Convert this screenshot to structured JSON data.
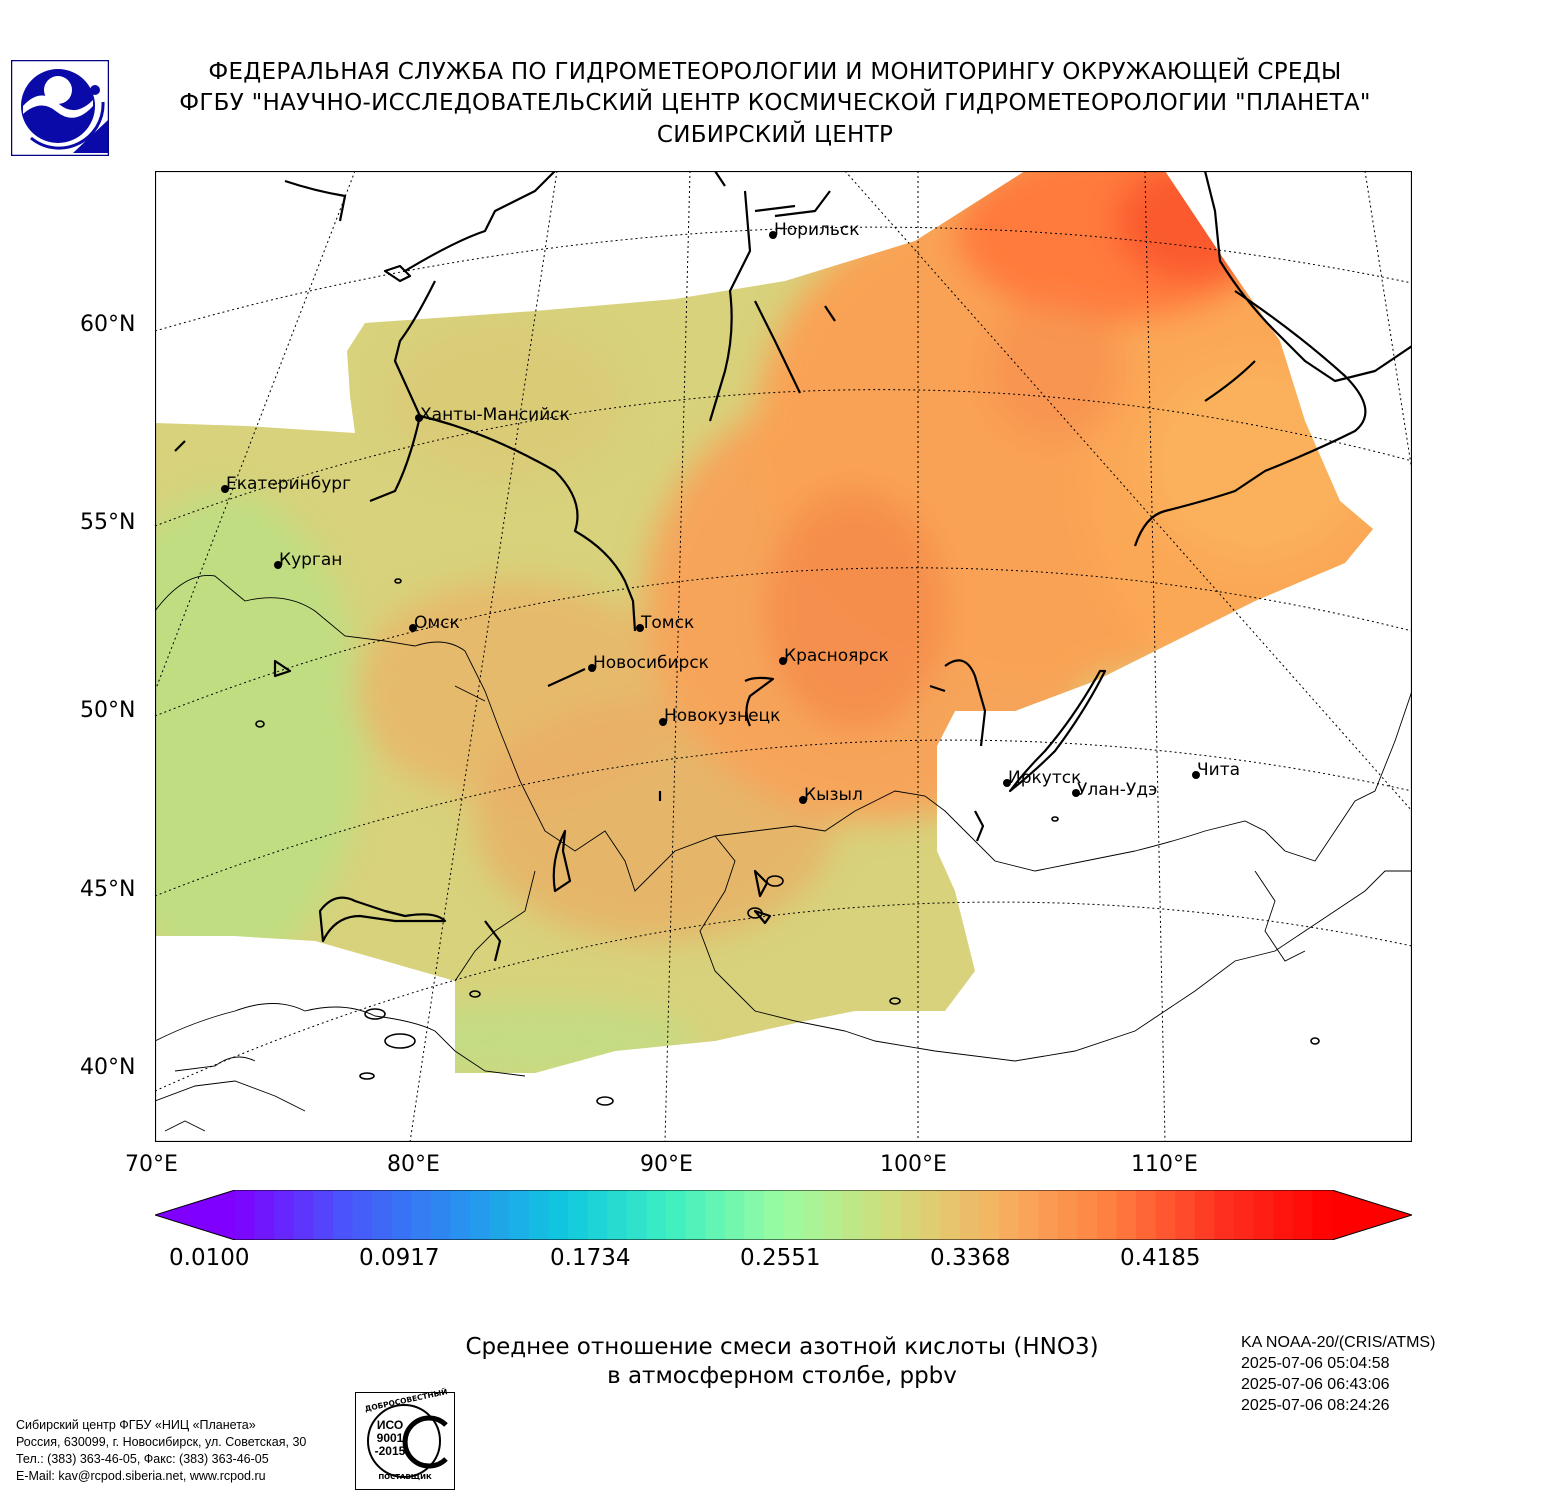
{
  "header": {
    "line1": "ФЕДЕРАЛЬНАЯ СЛУЖБА ПО ГИДРОМЕТЕОРОЛОГИИ И МОНИТОРИНГУ ОКРУЖАЮЩЕЙ СРЕДЫ",
    "line2": "ФГБУ \"НАУЧНО-ИССЛЕДОВАТЕЛЬСКИЙ ЦЕНТР КОСМИЧЕСКОЙ ГИДРОМЕТЕОРОЛОГИИ \"ПЛАНЕТА\"",
    "line3": "СИБИРСКИЙ ЦЕНТР"
  },
  "map": {
    "lat_labels": [
      "60°N",
      "55°N",
      "50°N",
      "45°N",
      "40°N"
    ],
    "lon_labels": [
      "70°E",
      "80°E",
      "90°E",
      "100°E",
      "110°E"
    ],
    "cities": [
      {
        "name": "Норильск"
      },
      {
        "name": "Ханты-Мансийск"
      },
      {
        "name": "Екатеринбург"
      },
      {
        "name": "Курган"
      },
      {
        "name": "Омск"
      },
      {
        "name": "Томск"
      },
      {
        "name": "Новосибирск"
      },
      {
        "name": "Красноярск"
      },
      {
        "name": "Новокузнецк"
      },
      {
        "name": "Иркутск"
      },
      {
        "name": "Улан-Удэ"
      },
      {
        "name": "Чита"
      },
      {
        "name": "Кызыл"
      }
    ]
  },
  "colorbar": {
    "labels": [
      "0.0100",
      "0.0917",
      "0.1734",
      "0.2551",
      "0.3368",
      "0.4185"
    ],
    "colors": [
      "#7f00ff",
      "#4a55fb",
      "#2a8ef0",
      "#10c8e0",
      "#40f0c0",
      "#9cfca0",
      "#d2dc7a",
      "#f8b060",
      "#ff7e40",
      "#ff3020",
      "#ff0000"
    ]
  },
  "title": {
    "line1": "Среднее отношение смеси азотной кислоты (HNO3)",
    "line2": "в атмосферном столбе, ppbv"
  },
  "satellite": {
    "name": "KA NOAA-20/(CRIS/ATMS)",
    "time1": "2025-07-06 05:04:58",
    "time2": "2025-07-06 06:43:06",
    "time3": "2025-07-06 08:24:26"
  },
  "footer": {
    "line1": "Сибирский центр ФГБУ «НИЦ «Планета»",
    "line2": "Россия, 630099, г. Новосибирск, ул. Советская, 30",
    "line3": "Тел.: (383) 363-46-05, Факс: (383) 363-46-05",
    "line4": "E-Mail: kav@rcpod.siberia.net, www.rcpod.ru"
  },
  "iso_badge": {
    "top": "ДОБРОСОВЕСТНЫЙ",
    "l1": "ИСО",
    "l2": "9001",
    "l3": "-2015",
    "bottom": "ПОСТАВЩИК"
  }
}
